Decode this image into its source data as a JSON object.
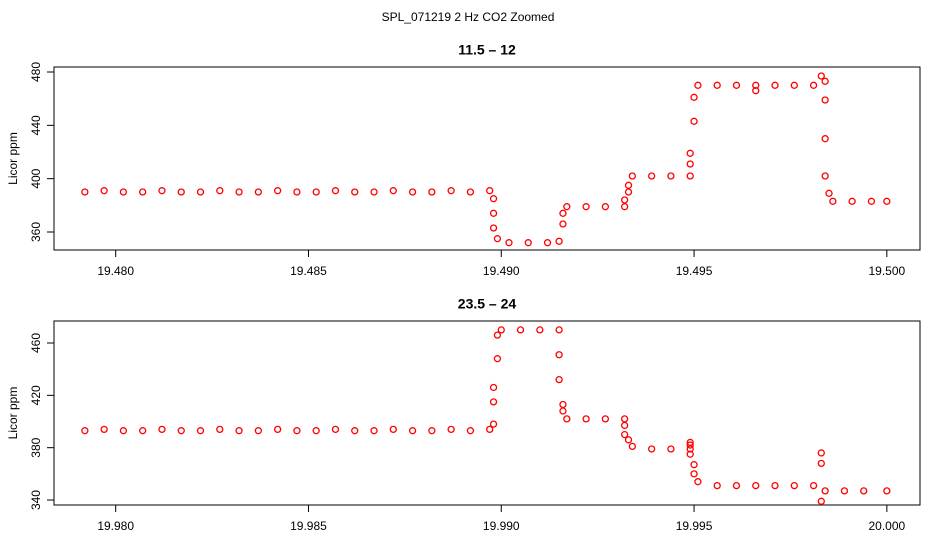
{
  "title": "SPL_071219  2 Hz CO2 Zoomed",
  "chart_data": [
    {
      "type": "scatter",
      "title": "11.5 – 12",
      "y_label": "Licor ppm",
      "color": "#ff0000",
      "xlim": [
        19.4784,
        19.50086
      ],
      "ylim": [
        346.5,
        483.75
      ],
      "xticks": [
        {
          "value": 19.48,
          "label": "19.480"
        },
        {
          "value": 19.485,
          "label": "19.485"
        },
        {
          "value": 19.49,
          "label": "19.490"
        },
        {
          "value": 19.495,
          "label": "19.495"
        },
        {
          "value": 19.5,
          "label": "19.500"
        }
      ],
      "yticks": [
        360,
        400,
        440,
        480
      ],
      "x": [
        19.4792,
        19.4797,
        19.4802,
        19.4807,
        19.4812,
        19.4817,
        19.4822,
        19.4827,
        19.4832,
        19.4837,
        19.4842,
        19.4847,
        19.4852,
        19.4857,
        19.4862,
        19.4867,
        19.4872,
        19.4877,
        19.4882,
        19.4887,
        19.4892,
        19.4897,
        19.4898,
        19.4898,
        19.4898,
        19.4899,
        19.4902,
        19.4907,
        19.4912,
        19.4915,
        19.4916,
        19.4916,
        19.4917,
        19.4922,
        19.4927,
        19.4932,
        19.4932,
        19.4933,
        19.4933,
        19.4934,
        19.4939,
        19.4944,
        19.4949,
        19.4949,
        19.4949,
        19.495,
        19.495,
        19.4951,
        19.4956,
        19.4961,
        19.4966,
        19.4966,
        19.4971,
        19.4976,
        19.4981,
        19.4983,
        19.4984,
        19.4984,
        19.4984,
        19.4984,
        19.4985,
        19.4986,
        19.4991,
        19.4996,
        19.5
      ],
      "y": [
        390,
        391,
        390,
        390,
        391,
        390,
        390,
        391,
        390,
        390,
        391,
        390,
        390,
        391,
        390,
        390,
        391,
        390,
        390,
        391,
        390,
        391,
        385,
        374,
        363,
        355,
        352,
        352,
        352,
        353,
        366,
        374,
        379,
        379,
        379,
        379,
        384,
        390,
        395,
        402,
        402,
        402,
        402,
        411,
        419,
        443,
        461,
        470,
        470,
        470,
        470,
        466,
        470,
        470,
        470,
        477,
        473,
        459,
        430,
        402,
        389,
        383,
        383,
        383,
        383
      ]
    },
    {
      "type": "scatter",
      "title": "23.5 – 24",
      "y_label": "Licor ppm",
      "color": "#ff0000",
      "xlim": [
        19.9784,
        20.00086
      ],
      "ylim": [
        336.2,
        476.8
      ],
      "xticks": [
        {
          "value": 19.98,
          "label": "19.980"
        },
        {
          "value": 19.985,
          "label": "19.985"
        },
        {
          "value": 19.99,
          "label": "19.990"
        },
        {
          "value": 19.995,
          "label": "19.995"
        },
        {
          "value": 20.0,
          "label": "20.000"
        }
      ],
      "yticks": [
        340,
        380,
        420,
        460
      ],
      "x": [
        19.9792,
        19.9797,
        19.9802,
        19.9807,
        19.9812,
        19.9817,
        19.9822,
        19.9827,
        19.9832,
        19.9837,
        19.9842,
        19.9847,
        19.9852,
        19.9857,
        19.9862,
        19.9867,
        19.9872,
        19.9877,
        19.9882,
        19.9887,
        19.9892,
        19.9897,
        19.9898,
        19.9898,
        19.9898,
        19.9899,
        19.9899,
        19.99,
        19.9905,
        19.991,
        19.9915,
        19.9915,
        19.9915,
        19.9916,
        19.9916,
        19.9917,
        19.9922,
        19.9927,
        19.9932,
        19.9932,
        19.9932,
        19.9933,
        19.9934,
        19.9939,
        19.9944,
        19.9949,
        19.9949,
        19.9949,
        19.9949,
        19.995,
        19.995,
        19.9951,
        19.9956,
        19.9961,
        19.9966,
        19.9971,
        19.9976,
        19.9981,
        19.9983,
        19.9983,
        19.9983,
        19.9984,
        19.9989,
        19.9994,
        20.0
      ],
      "y": [
        393,
        394,
        393,
        393,
        394,
        393,
        393,
        394,
        393,
        393,
        394,
        393,
        393,
        394,
        393,
        393,
        394,
        393,
        393,
        394,
        393,
        394,
        398,
        415,
        426,
        448,
        466,
        470,
        470,
        470,
        470,
        451,
        432,
        413,
        408,
        402,
        402,
        402,
        402,
        397,
        390,
        386,
        381,
        379,
        379,
        379,
        384,
        382,
        375,
        367,
        360,
        354,
        351,
        351,
        351,
        351,
        351,
        351,
        376,
        368,
        339,
        347,
        347,
        347,
        347
      ]
    }
  ]
}
